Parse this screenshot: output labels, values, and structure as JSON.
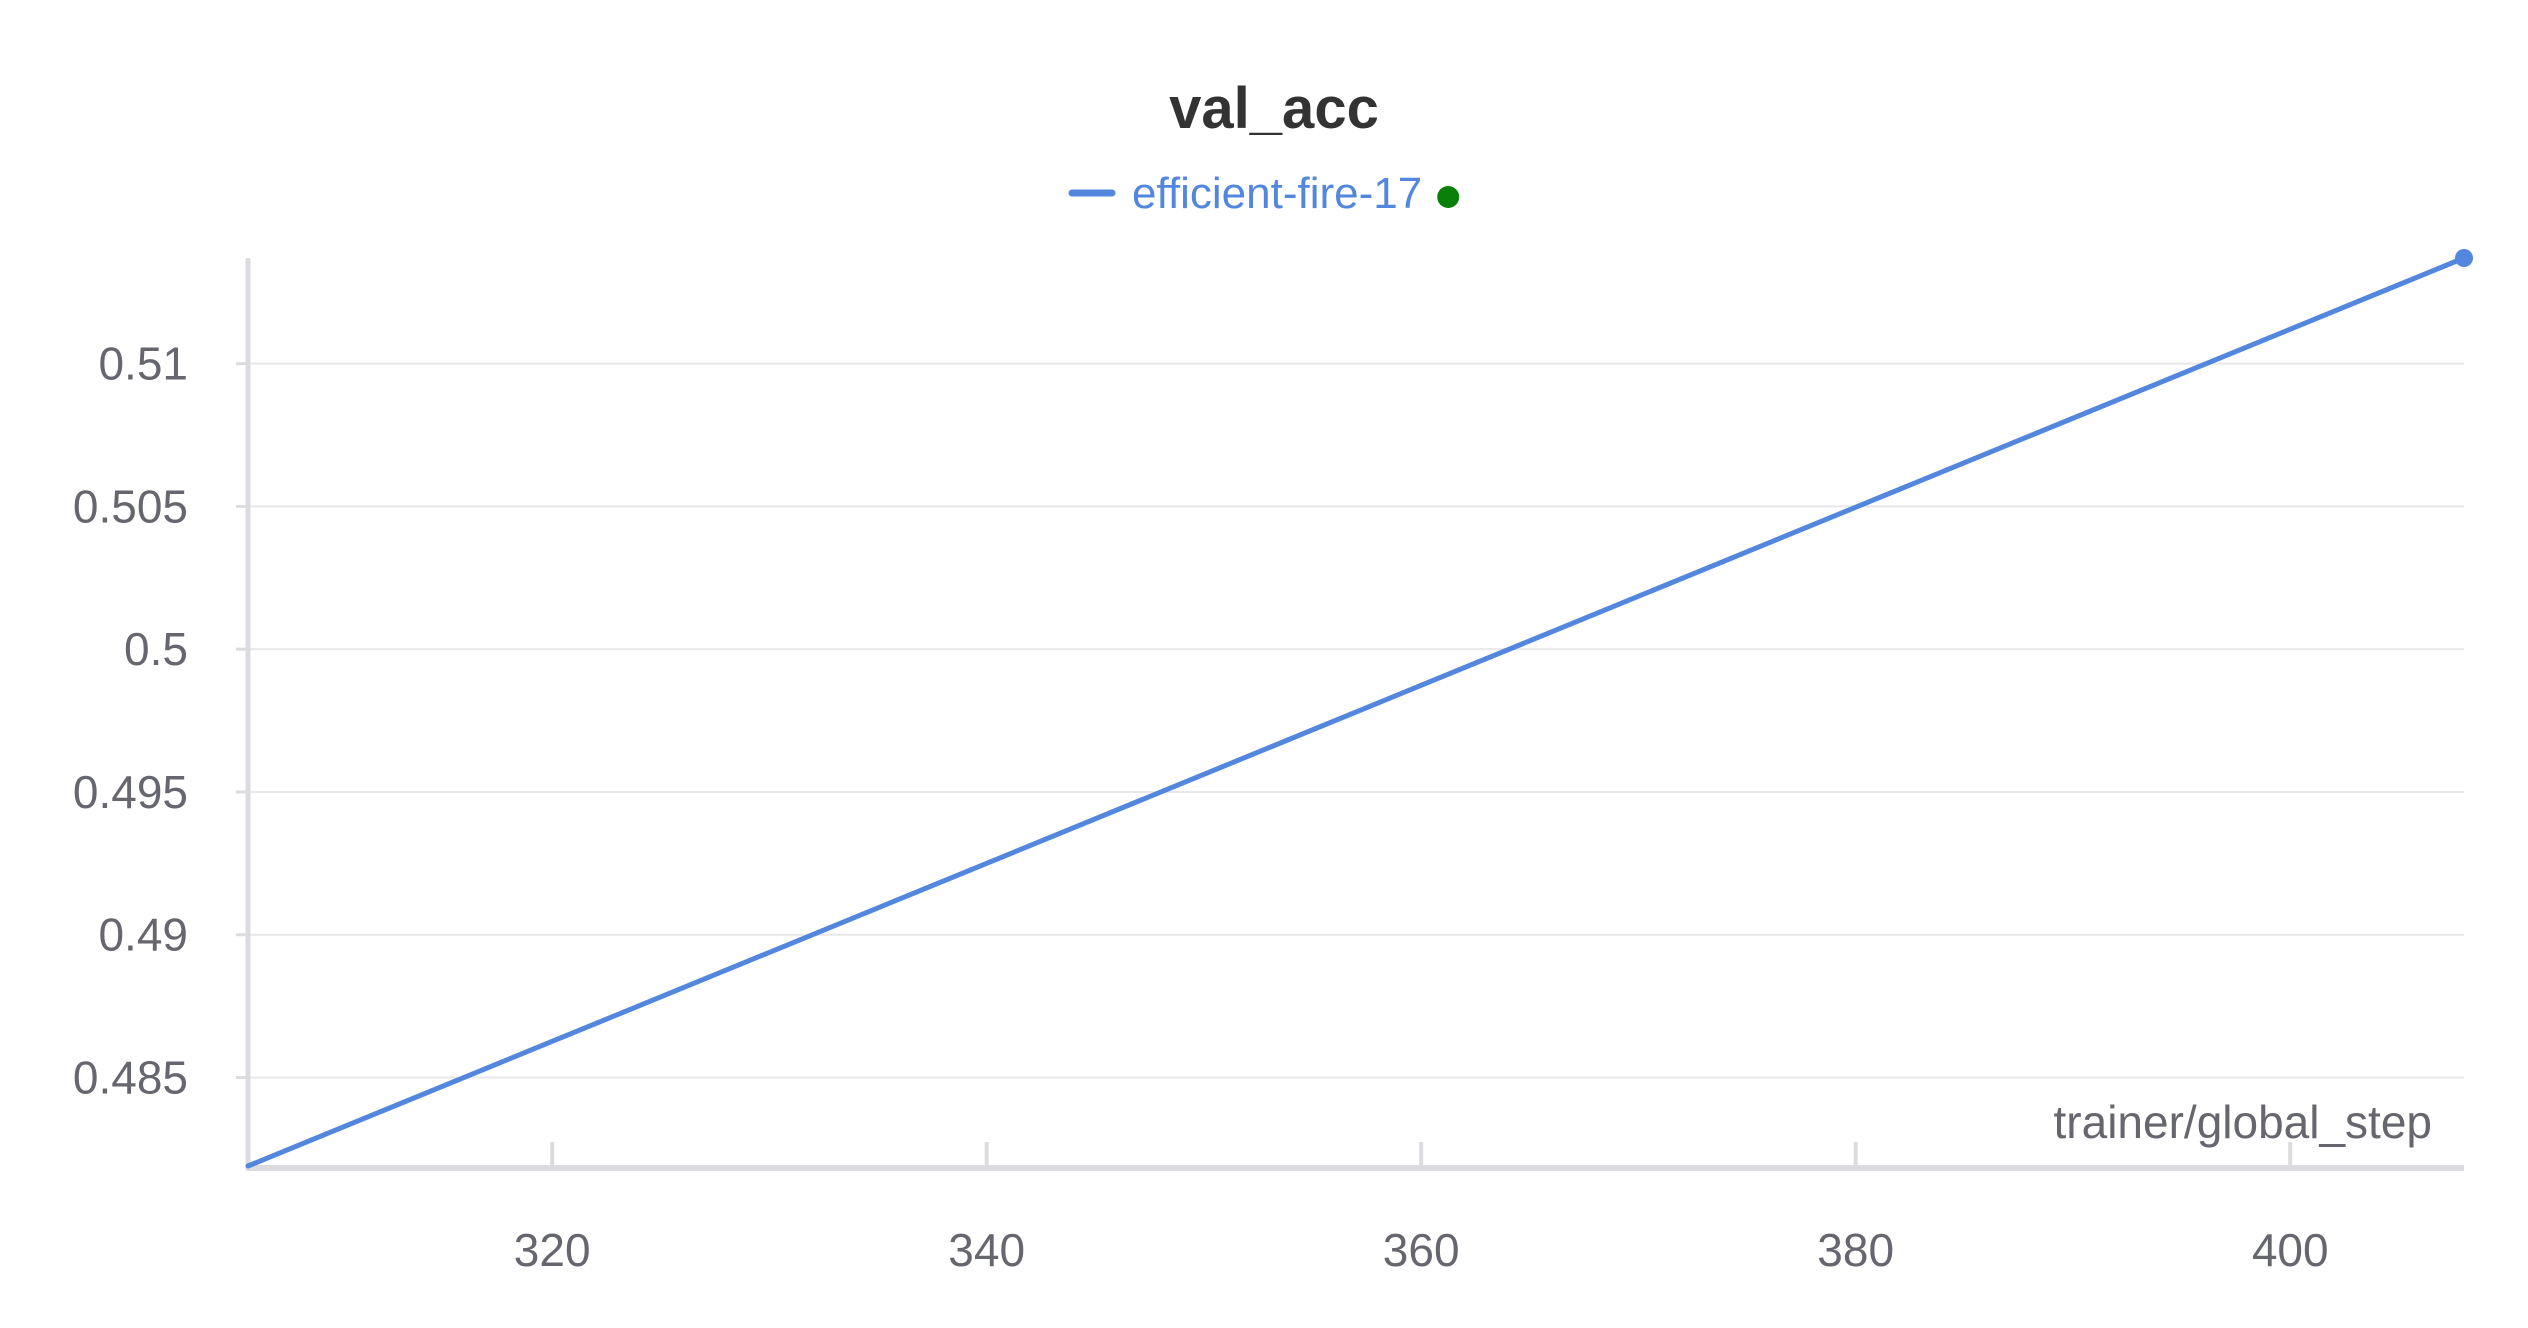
{
  "chart_data": {
    "type": "line",
    "title": "val_acc",
    "xlabel": "trainer/global_step",
    "ylabel": "",
    "xlim": [
      306,
      408
    ],
    "ylim": [
      0.4819,
      0.5137
    ],
    "x_ticks": [
      320,
      340,
      360,
      380,
      400
    ],
    "y_ticks": [
      0.485,
      0.49,
      0.495,
      0.5,
      0.505,
      0.51
    ],
    "x_tick_labels": [
      "320",
      "340",
      "360",
      "380",
      "400"
    ],
    "y_tick_labels": [
      "0.485",
      "0.49",
      "0.495",
      "0.5",
      "0.505",
      "0.51"
    ],
    "grid": true,
    "legend_position": "top-center",
    "series": [
      {
        "name": "efficient-fire-17",
        "color": "#5387DD",
        "status_color": "#0A7F0A",
        "x": [
          306,
          408
        ],
        "y": [
          0.4819,
          0.5137
        ]
      }
    ]
  }
}
